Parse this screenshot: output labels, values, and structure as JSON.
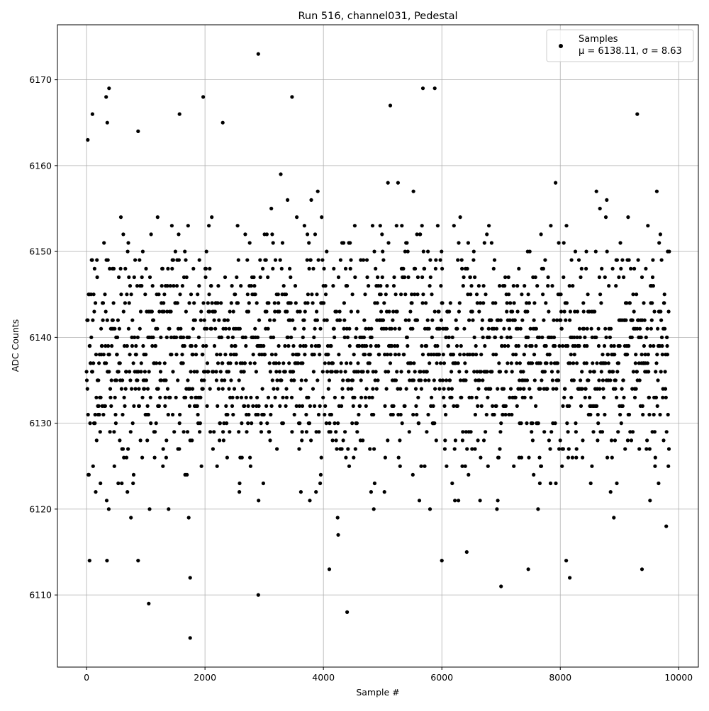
{
  "chart_data": {
    "type": "scatter",
    "title": "Run 516, channel031, Pedestal",
    "xlabel": "Sample #",
    "ylabel": "ADC Counts",
    "xlim": [
      -492,
      10332
    ],
    "ylim": [
      6101.6,
      6176.4
    ],
    "xticks": [
      0,
      2000,
      4000,
      6000,
      8000,
      10000
    ],
    "yticks": [
      6110,
      6120,
      6130,
      6140,
      6150,
      6160,
      6170
    ],
    "grid": true,
    "legend": {
      "placement": "top-right",
      "label": "Samples",
      "stats": "μ = 6138.11, σ = 8.63"
    },
    "series": [
      {
        "name": "Samples",
        "color": "#000000",
        "mean": 6138.11,
        "std": 8.63,
        "x_range": [
          0,
          9840
        ],
        "outliers": [
          [
            20,
            6163
          ],
          [
            50,
            6114
          ],
          [
            100,
            6166
          ],
          [
            330,
            6168
          ],
          [
            380,
            6169
          ],
          [
            350,
            6165
          ],
          [
            870,
            6164
          ],
          [
            1050,
            6109
          ],
          [
            1570,
            6166
          ],
          [
            1750,
            6105
          ],
          [
            1750,
            6112
          ],
          [
            1970,
            6168
          ],
          [
            2300,
            6165
          ],
          [
            2900,
            6173
          ],
          [
            2900,
            6110
          ],
          [
            3470,
            6168
          ],
          [
            4400,
            6108
          ],
          [
            4100,
            6113
          ],
          [
            5130,
            6167
          ],
          [
            5680,
            6169
          ],
          [
            5880,
            6169
          ],
          [
            6000,
            6114
          ],
          [
            7000,
            6111
          ],
          [
            7460,
            6113
          ],
          [
            8160,
            6112
          ],
          [
            9380,
            6113
          ],
          [
            9300,
            6166
          ]
        ]
      }
    ]
  }
}
